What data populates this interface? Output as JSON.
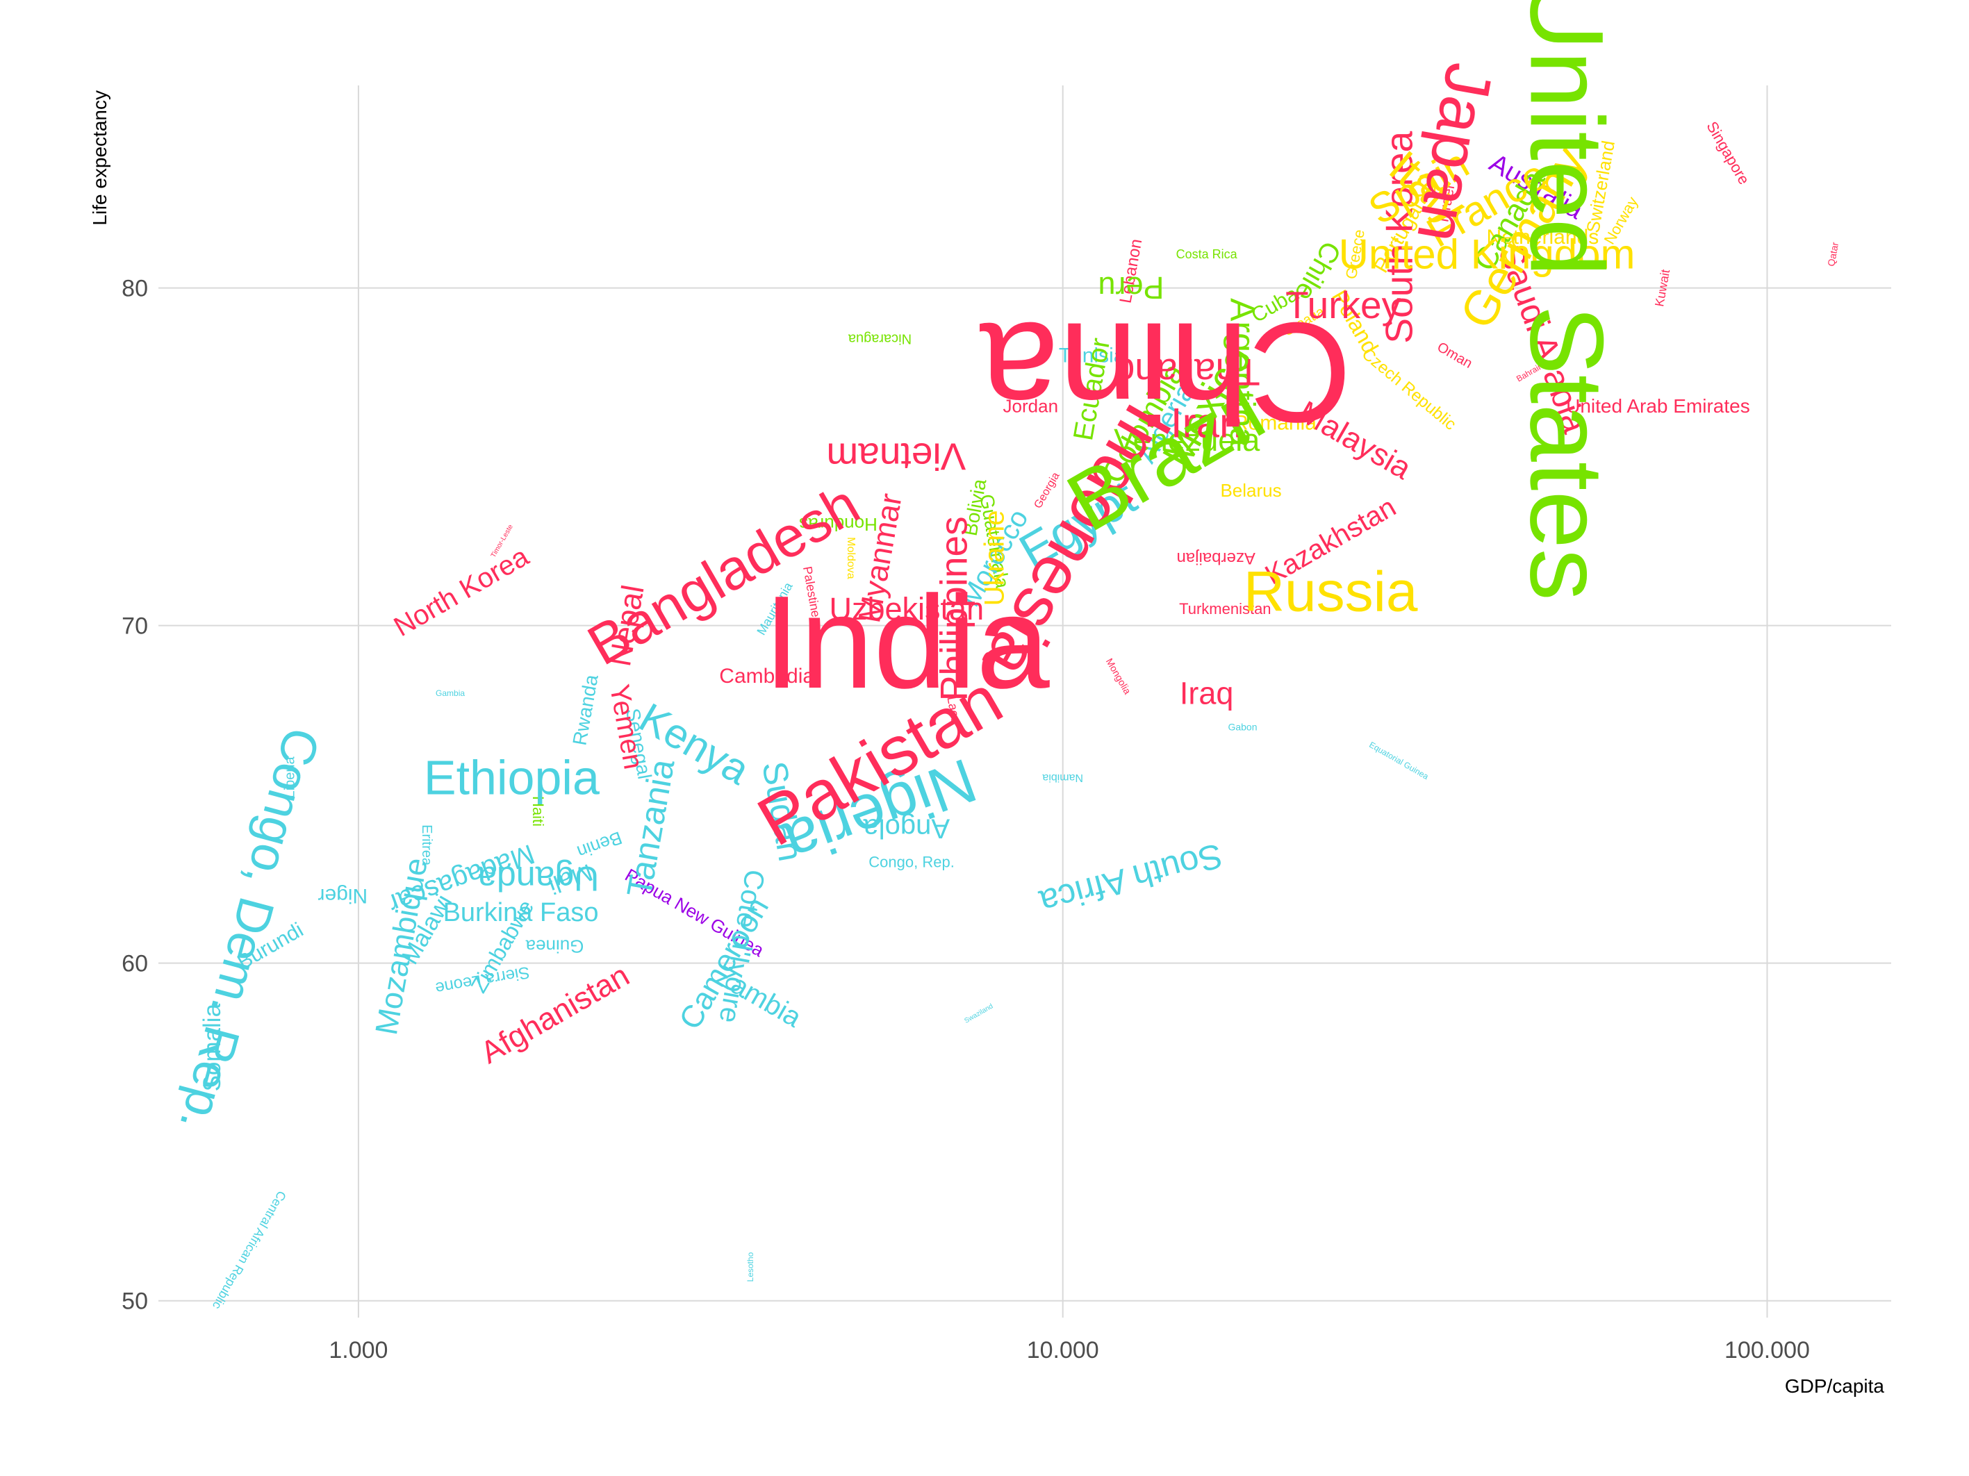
{
  "chart_data": {
    "type": "scatter",
    "title": "",
    "xlabel": "GDP/capita",
    "ylabel": "Life expectancy",
    "xscale": "log10",
    "xlim": [
      520,
      150000
    ],
    "ylim": [
      49.5,
      86
    ],
    "grid": true,
    "xticks": [
      {
        "value": 1000,
        "label": "1.000"
      },
      {
        "value": 10000,
        "label": "10.000"
      },
      {
        "value": 100000,
        "label": "100.000"
      }
    ],
    "yticks": [
      {
        "value": 50,
        "label": "50"
      },
      {
        "value": 60,
        "label": "60"
      },
      {
        "value": 70,
        "label": "70"
      },
      {
        "value": 80,
        "label": "80"
      }
    ],
    "colors": {
      "asia": "#ff2d5a",
      "africa": "#4dd2e0",
      "americas": "#77e300",
      "europe": "#ffe100",
      "oceania": "#9b00e6"
    },
    "points": [
      {
        "name": "India",
        "x": 6000,
        "y": 69.5,
        "size": 190,
        "rot": 0,
        "group": "asia"
      },
      {
        "name": "China",
        "x": 14000,
        "y": 77.5,
        "size": 205,
        "rot": 180,
        "group": "asia"
      },
      {
        "name": "United States",
        "x": 52000,
        "y": 80.0,
        "size": 150,
        "rot": 90,
        "group": "americas"
      },
      {
        "name": "Russia",
        "x": 24000,
        "y": 71.0,
        "size": 82,
        "rot": 0,
        "group": "europe"
      },
      {
        "name": "Brazil",
        "x": 14000,
        "y": 75.0,
        "size": 120,
        "rot": -30,
        "group": "americas"
      },
      {
        "name": "Indonesia",
        "x": 10500,
        "y": 72.5,
        "size": 100,
        "rot": 120,
        "group": "asia"
      },
      {
        "name": "Pakistan",
        "x": 5500,
        "y": 66.0,
        "size": 100,
        "rot": -30,
        "group": "asia"
      },
      {
        "name": "Nigeria",
        "x": 5500,
        "y": 64.5,
        "size": 90,
        "rot": 160,
        "group": "africa"
      },
      {
        "name": "Bangladesh",
        "x": 3300,
        "y": 71.5,
        "size": 82,
        "rot": -30,
        "group": "asia"
      },
      {
        "name": "Ethiopia",
        "x": 1650,
        "y": 65.5,
        "size": 70,
        "rot": 0,
        "group": "africa"
      },
      {
        "name": "Congo, Dem. Rep.",
        "x": 700,
        "y": 61.0,
        "size": 72,
        "rot": 105,
        "group": "africa"
      },
      {
        "name": "United Kingdom",
        "x": 40000,
        "y": 81.0,
        "size": 60,
        "rot": 0,
        "group": "europe"
      },
      {
        "name": "Turkey",
        "x": 25000,
        "y": 79.5,
        "size": 55,
        "rot": 0,
        "group": "asia"
      },
      {
        "name": "Germany",
        "x": 45000,
        "y": 81.5,
        "size": 70,
        "rot": -60,
        "group": "europe"
      },
      {
        "name": "Japan",
        "x": 36000,
        "y": 84.0,
        "size": 95,
        "rot": 100,
        "group": "asia"
      },
      {
        "name": "Spain",
        "x": 32000,
        "y": 83.0,
        "size": 60,
        "rot": -30,
        "group": "europe"
      },
      {
        "name": "France",
        "x": 40000,
        "y": 82.5,
        "size": 60,
        "rot": -30,
        "group": "europe"
      },
      {
        "name": "Italy",
        "x": 33000,
        "y": 83.0,
        "size": 65,
        "rot": 40,
        "group": "europe"
      },
      {
        "name": "South Korea",
        "x": 30000,
        "y": 81.5,
        "size": 55,
        "rot": -90,
        "group": "asia"
      },
      {
        "name": "Saudi Arabia",
        "x": 48000,
        "y": 78.5,
        "size": 50,
        "rot": 70,
        "group": "asia"
      },
      {
        "name": "Mexico",
        "x": 16000,
        "y": 76.5,
        "size": 60,
        "rot": -60,
        "group": "americas"
      },
      {
        "name": "Egypt",
        "x": 10500,
        "y": 73.0,
        "size": 70,
        "rot": -30,
        "group": "africa"
      },
      {
        "name": "Philippines",
        "x": 7000,
        "y": 70.5,
        "size": 55,
        "rot": -90,
        "group": "asia"
      },
      {
        "name": "Vietnam",
        "x": 5800,
        "y": 75.0,
        "size": 55,
        "rot": 180,
        "group": "asia"
      },
      {
        "name": "Iran",
        "x": 16000,
        "y": 76.0,
        "size": 60,
        "rot": 0,
        "group": "asia"
      },
      {
        "name": "Thailand",
        "x": 15000,
        "y": 77.5,
        "size": 55,
        "rot": 180,
        "group": "asia"
      },
      {
        "name": "Colombia",
        "x": 13000,
        "y": 76.0,
        "size": 45,
        "rot": -60,
        "group": "americas"
      },
      {
        "name": "Argentina",
        "x": 18000,
        "y": 77.5,
        "size": 50,
        "rot": 90,
        "group": "americas"
      },
      {
        "name": "Canada",
        "x": 43000,
        "y": 82.0,
        "size": 45,
        "rot": -60,
        "group": "americas"
      },
      {
        "name": "Malaysia",
        "x": 26000,
        "y": 75.5,
        "size": 45,
        "rot": 30,
        "group": "asia"
      },
      {
        "name": "Kenya",
        "x": 3000,
        "y": 66.5,
        "size": 60,
        "rot": 30,
        "group": "africa"
      },
      {
        "name": "Tanzania",
        "x": 2600,
        "y": 64.0,
        "size": 50,
        "rot": -80,
        "group": "africa"
      },
      {
        "name": "Sudan",
        "x": 4000,
        "y": 64.5,
        "size": 50,
        "rot": 80,
        "group": "africa"
      },
      {
        "name": "Uganda",
        "x": 1800,
        "y": 62.5,
        "size": 50,
        "rot": 180,
        "group": "africa"
      },
      {
        "name": "Afghanistan",
        "x": 1900,
        "y": 58.5,
        "size": 45,
        "rot": -30,
        "group": "asia"
      },
      {
        "name": "Yemen",
        "x": 2400,
        "y": 67.0,
        "size": 40,
        "rot": 80,
        "group": "asia"
      },
      {
        "name": "Nepal",
        "x": 2400,
        "y": 70.0,
        "size": 45,
        "rot": -80,
        "group": "asia"
      },
      {
        "name": "Myanmar",
        "x": 5500,
        "y": 72.0,
        "size": 45,
        "rot": -80,
        "group": "asia"
      },
      {
        "name": "Uzbekistan",
        "x": 6000,
        "y": 70.5,
        "size": 45,
        "rot": 0,
        "group": "asia"
      },
      {
        "name": "Cambodia",
        "x": 3800,
        "y": 68.5,
        "size": 30,
        "rot": 0,
        "group": "asia"
      },
      {
        "name": "North Korea",
        "x": 1400,
        "y": 71.0,
        "size": 40,
        "rot": -30,
        "group": "asia"
      },
      {
        "name": "Kazakhstan",
        "x": 24000,
        "y": 72.5,
        "size": 40,
        "rot": -30,
        "group": "asia"
      },
      {
        "name": "Iraq",
        "x": 16000,
        "y": 68.0,
        "size": 45,
        "rot": 0,
        "group": "asia"
      },
      {
        "name": "Morocco",
        "x": 8000,
        "y": 72.0,
        "size": 40,
        "rot": -60,
        "group": "africa"
      },
      {
        "name": "Algeria",
        "x": 14000,
        "y": 76.0,
        "size": 40,
        "rot": -60,
        "group": "africa"
      },
      {
        "name": "South Africa",
        "x": 12500,
        "y": 62.5,
        "size": 50,
        "rot": 165,
        "group": "africa"
      },
      {
        "name": "Angola",
        "x": 6000,
        "y": 64.0,
        "size": 40,
        "rot": 180,
        "group": "africa"
      },
      {
        "name": "Cameroon",
        "x": 3300,
        "y": 60.0,
        "size": 45,
        "rot": -60,
        "group": "africa"
      },
      {
        "name": "Cote d'Ivoire",
        "x": 3500,
        "y": 60.5,
        "size": 40,
        "rot": 100,
        "group": "africa"
      },
      {
        "name": "Zambia",
        "x": 3700,
        "y": 59.0,
        "size": 40,
        "rot": 30,
        "group": "africa"
      },
      {
        "name": "Mozambique",
        "x": 1150,
        "y": 60.5,
        "size": 45,
        "rot": -80,
        "group": "africa"
      },
      {
        "name": "Madagascar",
        "x": 1400,
        "y": 62.5,
        "size": 40,
        "rot": 160,
        "group": "africa"
      },
      {
        "name": "Burkina Faso",
        "x": 1700,
        "y": 61.5,
        "size": 38,
        "rot": 0,
        "group": "africa"
      },
      {
        "name": "Niger",
        "x": 950,
        "y": 62.0,
        "size": 30,
        "rot": 180,
        "group": "africa"
      },
      {
        "name": "Malawi",
        "x": 1250,
        "y": 61.0,
        "size": 35,
        "rot": -60,
        "group": "africa"
      },
      {
        "name": "Mali",
        "x": 2000,
        "y": 62.5,
        "size": 35,
        "rot": 160,
        "group": "africa"
      },
      {
        "name": "Zimbabwe",
        "x": 1600,
        "y": 60.5,
        "size": 32,
        "rot": -60,
        "group": "africa"
      },
      {
        "name": "Somalia",
        "x": 620,
        "y": 57.5,
        "size": 35,
        "rot": -90,
        "group": "africa"
      },
      {
        "name": "Burundi",
        "x": 750,
        "y": 60.5,
        "size": 30,
        "rot": -30,
        "group": "africa"
      },
      {
        "name": "Rwanda",
        "x": 2100,
        "y": 67.5,
        "size": 28,
        "rot": -80,
        "group": "africa"
      },
      {
        "name": "Senegal",
        "x": 2500,
        "y": 66.5,
        "size": 28,
        "rot": 80,
        "group": "africa"
      },
      {
        "name": "Benin",
        "x": 2200,
        "y": 63.5,
        "size": 26,
        "rot": 160,
        "group": "africa"
      },
      {
        "name": "Guinea",
        "x": 1900,
        "y": 60.5,
        "size": 26,
        "rot": 180,
        "group": "africa"
      },
      {
        "name": "Sierra Leone",
        "x": 1500,
        "y": 59.5,
        "size": 24,
        "rot": 170,
        "group": "africa"
      },
      {
        "name": "Eritrea",
        "x": 1250,
        "y": 63.5,
        "size": 20,
        "rot": 90,
        "group": "africa"
      },
      {
        "name": "Liberia",
        "x": 800,
        "y": 65.5,
        "size": 20,
        "rot": -90,
        "group": "africa"
      },
      {
        "name": "Central African Republic",
        "x": 700,
        "y": 51.5,
        "size": 18,
        "rot": 120,
        "group": "africa"
      },
      {
        "name": "Papua New Guinea",
        "x": 3000,
        "y": 61.5,
        "size": 26,
        "rot": 30,
        "group": "oceania"
      },
      {
        "name": "Australia",
        "x": 47000,
        "y": 83.0,
        "size": 38,
        "rot": 30,
        "group": "oceania"
      },
      {
        "name": "Peru",
        "x": 12500,
        "y": 80.0,
        "size": 45,
        "rot": 180,
        "group": "americas"
      },
      {
        "name": "Chile",
        "x": 23000,
        "y": 80.5,
        "size": 40,
        "rot": 120,
        "group": "americas"
      },
      {
        "name": "Venezuela",
        "x": 15000,
        "y": 75.5,
        "size": 45,
        "rot": 0,
        "group": "americas"
      },
      {
        "name": "Ecuador",
        "x": 11000,
        "y": 77.0,
        "size": 40,
        "rot": -80,
        "group": "americas"
      },
      {
        "name": "Guatemala",
        "x": 8000,
        "y": 72.5,
        "size": 28,
        "rot": 80,
        "group": "americas"
      },
      {
        "name": "Bolivia",
        "x": 7500,
        "y": 73.5,
        "size": 28,
        "rot": -80,
        "group": "americas"
      },
      {
        "name": "Honduras",
        "x": 4800,
        "y": 73.0,
        "size": 26,
        "rot": 180,
        "group": "americas"
      },
      {
        "name": "Haiti",
        "x": 1800,
        "y": 64.5,
        "size": 22,
        "rot": 90,
        "group": "americas"
      },
      {
        "name": "Nicaragua",
        "x": 5500,
        "y": 78.5,
        "size": 20,
        "rot": 180,
        "group": "americas"
      },
      {
        "name": "Costa Rica",
        "x": 16000,
        "y": 81.0,
        "size": 18,
        "rot": 0,
        "group": "americas"
      },
      {
        "name": "Cuba",
        "x": 20000,
        "y": 79.5,
        "size": 30,
        "rot": -30,
        "group": "americas"
      },
      {
        "name": "Belarus",
        "x": 18500,
        "y": 74.0,
        "size": 26,
        "rot": 0,
        "group": "europe"
      },
      {
        "name": "Ukraine",
        "x": 8000,
        "y": 72.0,
        "size": 40,
        "rot": -90,
        "group": "europe"
      },
      {
        "name": "Moldova",
        "x": 5000,
        "y": 72.0,
        "size": 16,
        "rot": 90,
        "group": "europe"
      },
      {
        "name": "Netherlands",
        "x": 48000,
        "y": 81.5,
        "size": 30,
        "rot": 0,
        "group": "europe"
      },
      {
        "name": "Switzerland",
        "x": 58000,
        "y": 83.0,
        "size": 26,
        "rot": -80,
        "group": "europe"
      },
      {
        "name": "Norway",
        "x": 62000,
        "y": 82.0,
        "size": 22,
        "rot": -60,
        "group": "europe"
      },
      {
        "name": "Poland",
        "x": 26000,
        "y": 79.0,
        "size": 32,
        "rot": 60,
        "group": "europe"
      },
      {
        "name": "Romania",
        "x": 20000,
        "y": 76.0,
        "size": 30,
        "rot": 0,
        "group": "europe"
      },
      {
        "name": "Czech Republic",
        "x": 31000,
        "y": 77.0,
        "size": 24,
        "rot": 40,
        "group": "europe"
      },
      {
        "name": "Portugal",
        "x": 30000,
        "y": 81.5,
        "size": 30,
        "rot": -60,
        "group": "europe"
      },
      {
        "name": "Greece",
        "x": 26000,
        "y": 81.0,
        "size": 22,
        "rot": -80,
        "group": "europe"
      },
      {
        "name": "Jordan",
        "x": 9000,
        "y": 76.5,
        "size": 26,
        "rot": 0,
        "group": "asia"
      },
      {
        "name": "Azerbaijan",
        "x": 16500,
        "y": 72.0,
        "size": 24,
        "rot": 180,
        "group": "asia"
      },
      {
        "name": "Turkmenistan",
        "x": 17000,
        "y": 70.5,
        "size": 22,
        "rot": 0,
        "group": "asia"
      },
      {
        "name": "United Arab Emirates",
        "x": 70000,
        "y": 76.5,
        "size": 28,
        "rot": 0,
        "group": "asia"
      },
      {
        "name": "Singapore",
        "x": 88000,
        "y": 84.0,
        "size": 22,
        "rot": 60,
        "group": "asia"
      },
      {
        "name": "Qatar",
        "x": 124000,
        "y": 81.0,
        "size": 14,
        "rot": -80,
        "group": "asia"
      },
      {
        "name": "Kuwait",
        "x": 71000,
        "y": 80.0,
        "size": 18,
        "rot": -80,
        "group": "asia"
      },
      {
        "name": "Oman",
        "x": 36000,
        "y": 78.0,
        "size": 20,
        "rot": 30,
        "group": "asia"
      },
      {
        "name": "Israel",
        "x": 35000,
        "y": 82.5,
        "size": 22,
        "rot": -80,
        "group": "asia"
      },
      {
        "name": "Lebanon",
        "x": 12500,
        "y": 80.5,
        "size": 24,
        "rot": -80,
        "group": "asia"
      },
      {
        "name": "Palestine",
        "x": 4400,
        "y": 71.0,
        "size": 18,
        "rot": 80,
        "group": "asia"
      },
      {
        "name": "Laos",
        "x": 7000,
        "y": 67.5,
        "size": 18,
        "rot": 80,
        "group": "asia"
      },
      {
        "name": "Congo, Rep.",
        "x": 6100,
        "y": 63.0,
        "size": 22,
        "rot": 0,
        "group": "africa"
      },
      {
        "name": "Gabon",
        "x": 18000,
        "y": 67.0,
        "size": 14,
        "rot": 0,
        "group": "africa"
      },
      {
        "name": "Namibia",
        "x": 10000,
        "y": 65.5,
        "size": 16,
        "rot": 180,
        "group": "africa"
      },
      {
        "name": "Mauritania",
        "x": 3900,
        "y": 70.5,
        "size": 18,
        "rot": -60,
        "group": "africa"
      },
      {
        "name": "Lesotho",
        "x": 3600,
        "y": 51.0,
        "size": 12,
        "rot": -90,
        "group": "africa"
      },
      {
        "name": "Swaziland",
        "x": 7600,
        "y": 58.5,
        "size": 10,
        "rot": -30,
        "group": "africa"
      },
      {
        "name": "Gambia",
        "x": 1350,
        "y": 68.0,
        "size": 12,
        "rot": 0,
        "group": "africa"
      },
      {
        "name": "Georgia",
        "x": 9500,
        "y": 74.0,
        "size": 16,
        "rot": -60,
        "group": "asia"
      },
      {
        "name": "Mongolia",
        "x": 12000,
        "y": 68.5,
        "size": 14,
        "rot": 60,
        "group": "asia"
      },
      {
        "name": "Timor-Leste",
        "x": 1600,
        "y": 72.5,
        "size": 10,
        "rot": -60,
        "group": "asia"
      },
      {
        "name": "Bahrain",
        "x": 46000,
        "y": 77.5,
        "size": 12,
        "rot": -30,
        "group": "asia"
      },
      {
        "name": "Tunisia",
        "x": 11000,
        "y": 78.0,
        "size": 30,
        "rot": 0,
        "group": "africa"
      },
      {
        "name": "Croatia",
        "x": 22000,
        "y": 79.0,
        "size": 20,
        "rot": -30,
        "group": "europe"
      },
      {
        "name": "Equatorial Guinea",
        "x": 30000,
        "y": 66.0,
        "size": 12,
        "rot": 30,
        "group": "africa"
      }
    ]
  }
}
